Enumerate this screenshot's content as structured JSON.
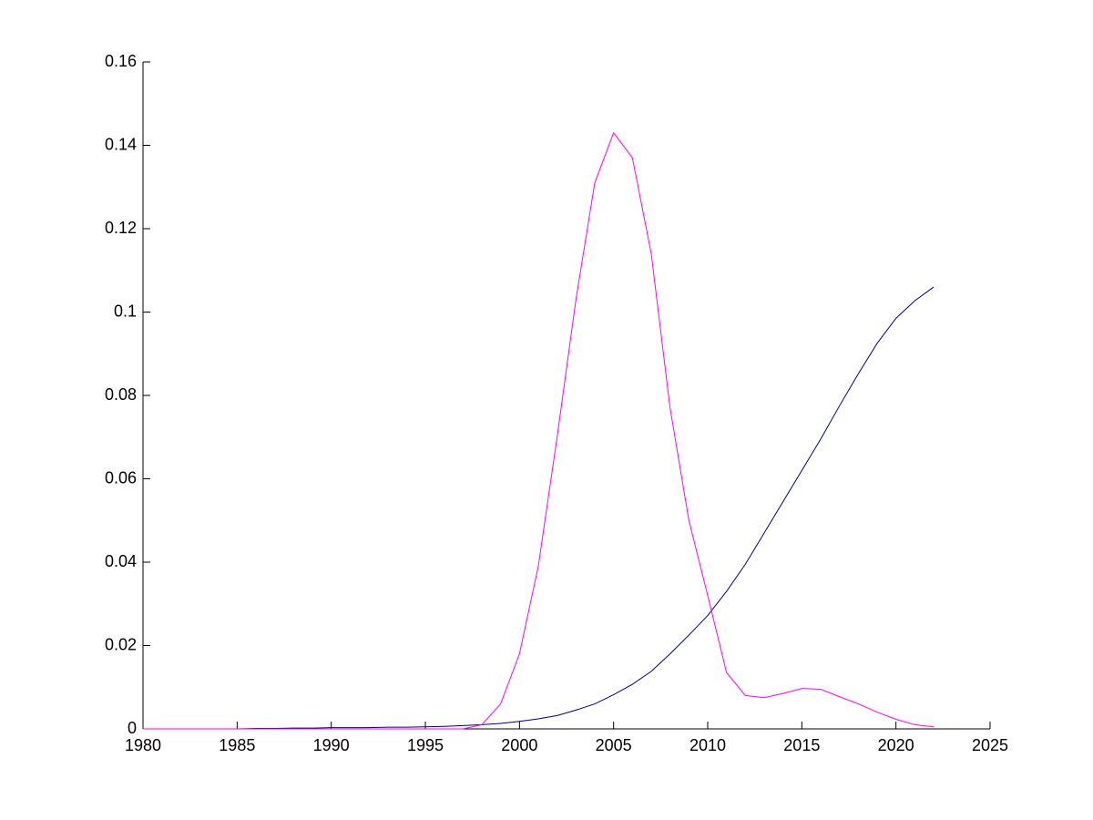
{
  "chart_data": {
    "type": "line",
    "x": [
      1980,
      1981,
      1982,
      1983,
      1984,
      1985,
      1986,
      1987,
      1988,
      1989,
      1990,
      1991,
      1992,
      1993,
      1994,
      1995,
      1996,
      1997,
      1998,
      1999,
      2000,
      2001,
      2002,
      2003,
      2004,
      2005,
      2006,
      2007,
      2008,
      2009,
      2010,
      2011,
      2012,
      2013,
      2014,
      2015,
      2016,
      2017,
      2018,
      2019,
      2020,
      2021,
      2022
    ],
    "series": [
      {
        "color": "#000080",
        "values": [
          0,
          0,
          0,
          0,
          0,
          0,
          0.0001,
          0.0001,
          0.0002,
          0.0002,
          0.0003,
          0.0003,
          0.0003,
          0.0004,
          0.0004,
          0.0005,
          0.0006,
          0.0008,
          0.001,
          0.0013,
          0.0018,
          0.0024,
          0.0032,
          0.0045,
          0.006,
          0.0082,
          0.0107,
          0.0138,
          0.018,
          0.0225,
          0.0272,
          0.033,
          0.0395,
          0.047,
          0.0545,
          0.062,
          0.0695,
          0.0775,
          0.0852,
          0.0925,
          0.0985,
          0.1027,
          0.106
        ]
      },
      {
        "color": "#ff00ff",
        "values": [
          0,
          0,
          0,
          0,
          0,
          0,
          0,
          0,
          0,
          0,
          0,
          0,
          0,
          0,
          0,
          0,
          0,
          0,
          0.001,
          0.006,
          0.018,
          0.039,
          0.07,
          0.103,
          0.131,
          0.143,
          0.137,
          0.114,
          0.077,
          0.05,
          0.032,
          0.0135,
          0.008,
          0.0075,
          0.0085,
          0.0097,
          0.0095,
          0.0077,
          0.006,
          0.004,
          0.0023,
          0.001,
          0.0005
        ]
      }
    ],
    "xlim": [
      1980,
      2025
    ],
    "xticks": [
      1980,
      1985,
      1990,
      1995,
      2000,
      2005,
      2010,
      2015,
      2020,
      2025
    ],
    "ylim": [
      0,
      0.16
    ],
    "yticks": [
      0,
      0.02,
      0.04,
      0.06,
      0.08,
      0.1,
      0.12,
      0.14,
      0.16
    ]
  }
}
